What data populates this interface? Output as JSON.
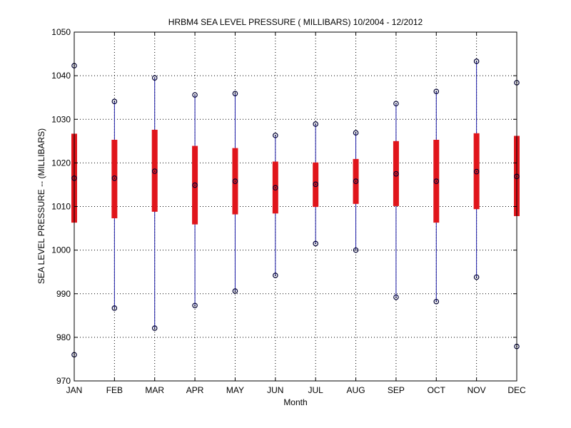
{
  "chart_data": {
    "type": "box",
    "title": "HRBM4  SEA LEVEL PRESSURE ( MILLIBARS) 10/2004 - 12/2012",
    "xlabel": "Month",
    "ylabel": "SEA LEVEL PRESSURE -- (MILLIBARS)",
    "ylim": [
      970,
      1050
    ],
    "yticks": [
      970,
      980,
      990,
      1000,
      1010,
      1020,
      1030,
      1040,
      1050
    ],
    "grid": true,
    "categories": [
      "JAN",
      "FEB",
      "MAR",
      "APR",
      "MAY",
      "JUN",
      "JUL",
      "AUG",
      "SEP",
      "OCT",
      "NOV",
      "DEC"
    ],
    "series": [
      {
        "name": "max",
        "values": [
          1042.3,
          1034.1,
          1039.5,
          1035.6,
          1035.9,
          1026.3,
          1028.9,
          1026.9,
          1033.6,
          1036.4,
          1043.3,
          1038.4
        ]
      },
      {
        "name": "upper",
        "values": [
          1026.7,
          1025.3,
          1027.6,
          1023.9,
          1023.4,
          1020.3,
          1020.1,
          1020.9,
          1025.0,
          1025.3,
          1026.8,
          1026.2
        ]
      },
      {
        "name": "mean",
        "values": [
          1016.5,
          1016.5,
          1018.1,
          1014.9,
          1015.8,
          1014.3,
          1015.1,
          1015.8,
          1017.5,
          1015.8,
          1018.0,
          1016.9
        ]
      },
      {
        "name": "lower",
        "values": [
          1006.3,
          1007.3,
          1008.8,
          1005.9,
          1008.2,
          1008.4,
          1009.9,
          1010.6,
          1010.1,
          1006.3,
          1009.4,
          1007.8
        ]
      },
      {
        "name": "min",
        "values": [
          976.0,
          986.7,
          982.1,
          987.3,
          990.6,
          994.2,
          1001.5,
          1000.0,
          989.2,
          988.2,
          993.8,
          977.9
        ]
      }
    ],
    "colors": {
      "whisker": "#1a1aa6",
      "box": "#e0151b",
      "marker": "#000033",
      "grid": "#000000",
      "axis": "#000000"
    }
  }
}
